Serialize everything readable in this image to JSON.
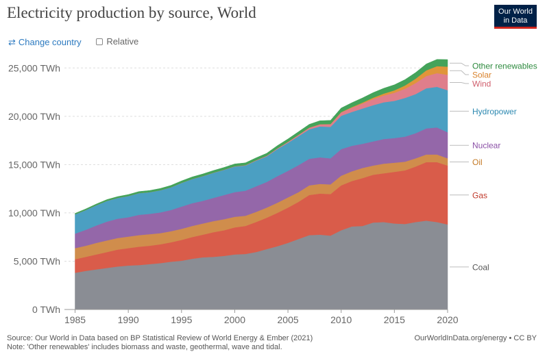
{
  "header": {
    "title": "Electricity production by source, World"
  },
  "logo": {
    "line1": "Our World",
    "line2": "in Data"
  },
  "controls": {
    "change_country": "Change country",
    "relative": "Relative"
  },
  "footer": {
    "source": "Source: Our World in Data based on BP Statistical Review of World Energy & Ember (2021)",
    "note": "Note: 'Other renewables' includes biomass and waste, geothermal, wave and tidal.",
    "url": "OurWorldInData.org/energy • CC BY"
  },
  "chart_data": {
    "type": "area",
    "stacked": true,
    "title": "Electricity production by source, World",
    "unit": "TWh",
    "x": [
      1985,
      1986,
      1987,
      1988,
      1989,
      1990,
      1991,
      1992,
      1993,
      1994,
      1995,
      1996,
      1997,
      1998,
      1999,
      2000,
      2001,
      2002,
      2003,
      2004,
      2005,
      2006,
      2007,
      2008,
      2009,
      2010,
      2011,
      2012,
      2013,
      2014,
      2015,
      2016,
      2017,
      2018,
      2019,
      2020
    ],
    "xticks": [
      1985,
      1990,
      1995,
      2000,
      2005,
      2010,
      2015,
      2020
    ],
    "xlim": [
      1984,
      2020
    ],
    "yticks": [
      0,
      5000,
      10000,
      15000,
      20000,
      25000
    ],
    "ytick_labels": [
      "0 TWh",
      "5,000 TWh",
      "10,000 TWh",
      "15,000 TWh",
      "20,000 TWh",
      "25,000 TWh"
    ],
    "ylim": [
      0,
      25800
    ],
    "series": [
      {
        "name": "Coal",
        "color": "#8a8d94",
        "values": [
          3800,
          4000,
          4150,
          4300,
          4450,
          4550,
          4600,
          4700,
          4800,
          4950,
          5050,
          5250,
          5400,
          5450,
          5550,
          5700,
          5750,
          5950,
          6250,
          6550,
          6900,
          7300,
          7700,
          7750,
          7650,
          8200,
          8600,
          8650,
          9000,
          9050,
          8900,
          8850,
          9050,
          9200,
          9050,
          8800
        ]
      },
      {
        "name": "Gas",
        "color": "#d95c4a",
        "values": [
          1400,
          1450,
          1550,
          1650,
          1750,
          1800,
          1900,
          1900,
          1950,
          2000,
          2150,
          2250,
          2350,
          2550,
          2650,
          2800,
          2900,
          3100,
          3250,
          3450,
          3650,
          3850,
          4150,
          4250,
          4300,
          4650,
          4700,
          4950,
          4950,
          5050,
          5350,
          5550,
          5750,
          6050,
          6200,
          6100
        ]
      },
      {
        "name": "Oil",
        "color": "#d08d4c",
        "values": [
          1150,
          1150,
          1200,
          1200,
          1200,
          1200,
          1200,
          1200,
          1150,
          1150,
          1150,
          1150,
          1150,
          1150,
          1150,
          1100,
          1050,
          1050,
          1050,
          1050,
          1050,
          1000,
          1000,
          1000,
          1000,
          1000,
          1000,
          1050,
          950,
          1000,
          950,
          900,
          850,
          800,
          800,
          750
        ]
      },
      {
        "name": "Nuclear",
        "color": "#9467a9",
        "values": [
          1500,
          1650,
          1800,
          1950,
          2000,
          2000,
          2100,
          2100,
          2150,
          2200,
          2300,
          2350,
          2350,
          2400,
          2500,
          2550,
          2600,
          2650,
          2650,
          2750,
          2750,
          2800,
          2750,
          2750,
          2700,
          2750,
          2650,
          2500,
          2500,
          2550,
          2550,
          2600,
          2600,
          2700,
          2800,
          2700
        ]
      },
      {
        "name": "Hydropower",
        "color": "#4b9fc2",
        "values": [
          2000,
          2050,
          2100,
          2150,
          2150,
          2200,
          2250,
          2250,
          2300,
          2350,
          2450,
          2500,
          2550,
          2600,
          2600,
          2650,
          2600,
          2650,
          2650,
          2800,
          2900,
          3000,
          3050,
          3200,
          3250,
          3450,
          3500,
          3650,
          3750,
          3800,
          3850,
          4000,
          4050,
          4150,
          4200,
          4350
        ]
      },
      {
        "name": "Wind",
        "color": "#df7e8b",
        "values": [
          0,
          0,
          0,
          0,
          0,
          0,
          0,
          0,
          0,
          0,
          10,
          12,
          15,
          20,
          25,
          30,
          40,
          50,
          60,
          80,
          100,
          130,
          170,
          220,
          280,
          350,
          440,
          520,
          640,
          710,
          830,
          960,
          1140,
          1270,
          1420,
          1590
        ]
      },
      {
        "name": "Solar",
        "color": "#e0953a",
        "values": [
          0,
          0,
          0,
          0,
          0,
          0,
          0,
          0,
          0,
          0,
          0,
          0,
          0,
          0,
          0,
          0,
          0,
          0,
          0,
          0,
          5,
          5,
          8,
          12,
          20,
          32,
          63,
          100,
          135,
          190,
          255,
          330,
          450,
          580,
          720,
          850
        ]
      },
      {
        "name": "Other renewables",
        "color": "#44a35a",
        "values": [
          100,
          110,
          120,
          130,
          140,
          150,
          160,
          170,
          180,
          190,
          200,
          210,
          220,
          220,
          230,
          240,
          240,
          250,
          260,
          280,
          300,
          320,
          340,
          360,
          380,
          420,
          450,
          480,
          520,
          550,
          580,
          610,
          640,
          670,
          700,
          730
        ]
      }
    ],
    "legend_labels": [
      {
        "series": "Coal",
        "color": "#555555"
      },
      {
        "series": "Gas",
        "color": "#c0392b"
      },
      {
        "series": "Oil",
        "color": "#c47a25"
      },
      {
        "series": "Nuclear",
        "color": "#8a4fa6"
      },
      {
        "series": "Hydropower",
        "color": "#2b88b0"
      },
      {
        "series": "Wind",
        "color": "#d0606e"
      },
      {
        "series": "Solar",
        "color": "#d9822b"
      },
      {
        "series": "Other renewables",
        "color": "#2d8a3e"
      }
    ]
  }
}
